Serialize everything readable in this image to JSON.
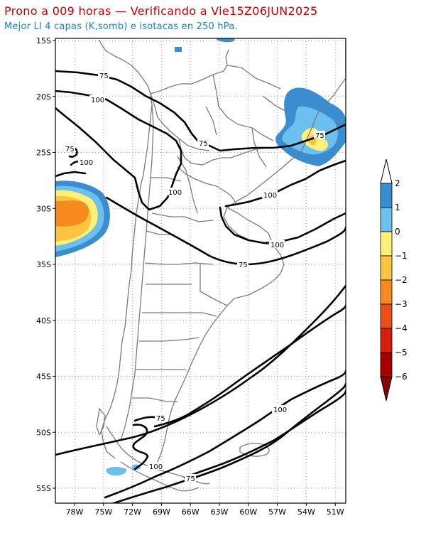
{
  "title": "Prono a 009 horas — Verificando a Vie15Z06JUN2025",
  "subtitle": "Mejor LI 4 capas (K,somb) e isotacas en 250 hPa.",
  "map": {
    "lat_labels": [
      "15S",
      "20S",
      "25S",
      "30S",
      "35S",
      "40S",
      "45S",
      "50S",
      "55S"
    ],
    "lon_labels": [
      "78W",
      "75W",
      "72W",
      "69W",
      "66W",
      "63W",
      "60W",
      "57W",
      "54W",
      "51W"
    ],
    "isotach_labels": [
      "75",
      "100",
      "75",
      "75",
      "100",
      "100",
      "100",
      "75",
      "75",
      "100",
      "75",
      "100",
      "75",
      "100"
    ]
  },
  "colorbar": {
    "labels": [
      "2",
      "1",
      "0",
      "−1",
      "−2",
      "−3",
      "−4",
      "−5",
      "−6"
    ],
    "colors": [
      "#3a8ed0",
      "#6cc0ee",
      "#fff07a",
      "#fbc542",
      "#f58a1e",
      "#e8501a",
      "#d42010",
      "#a80000"
    ]
  }
}
